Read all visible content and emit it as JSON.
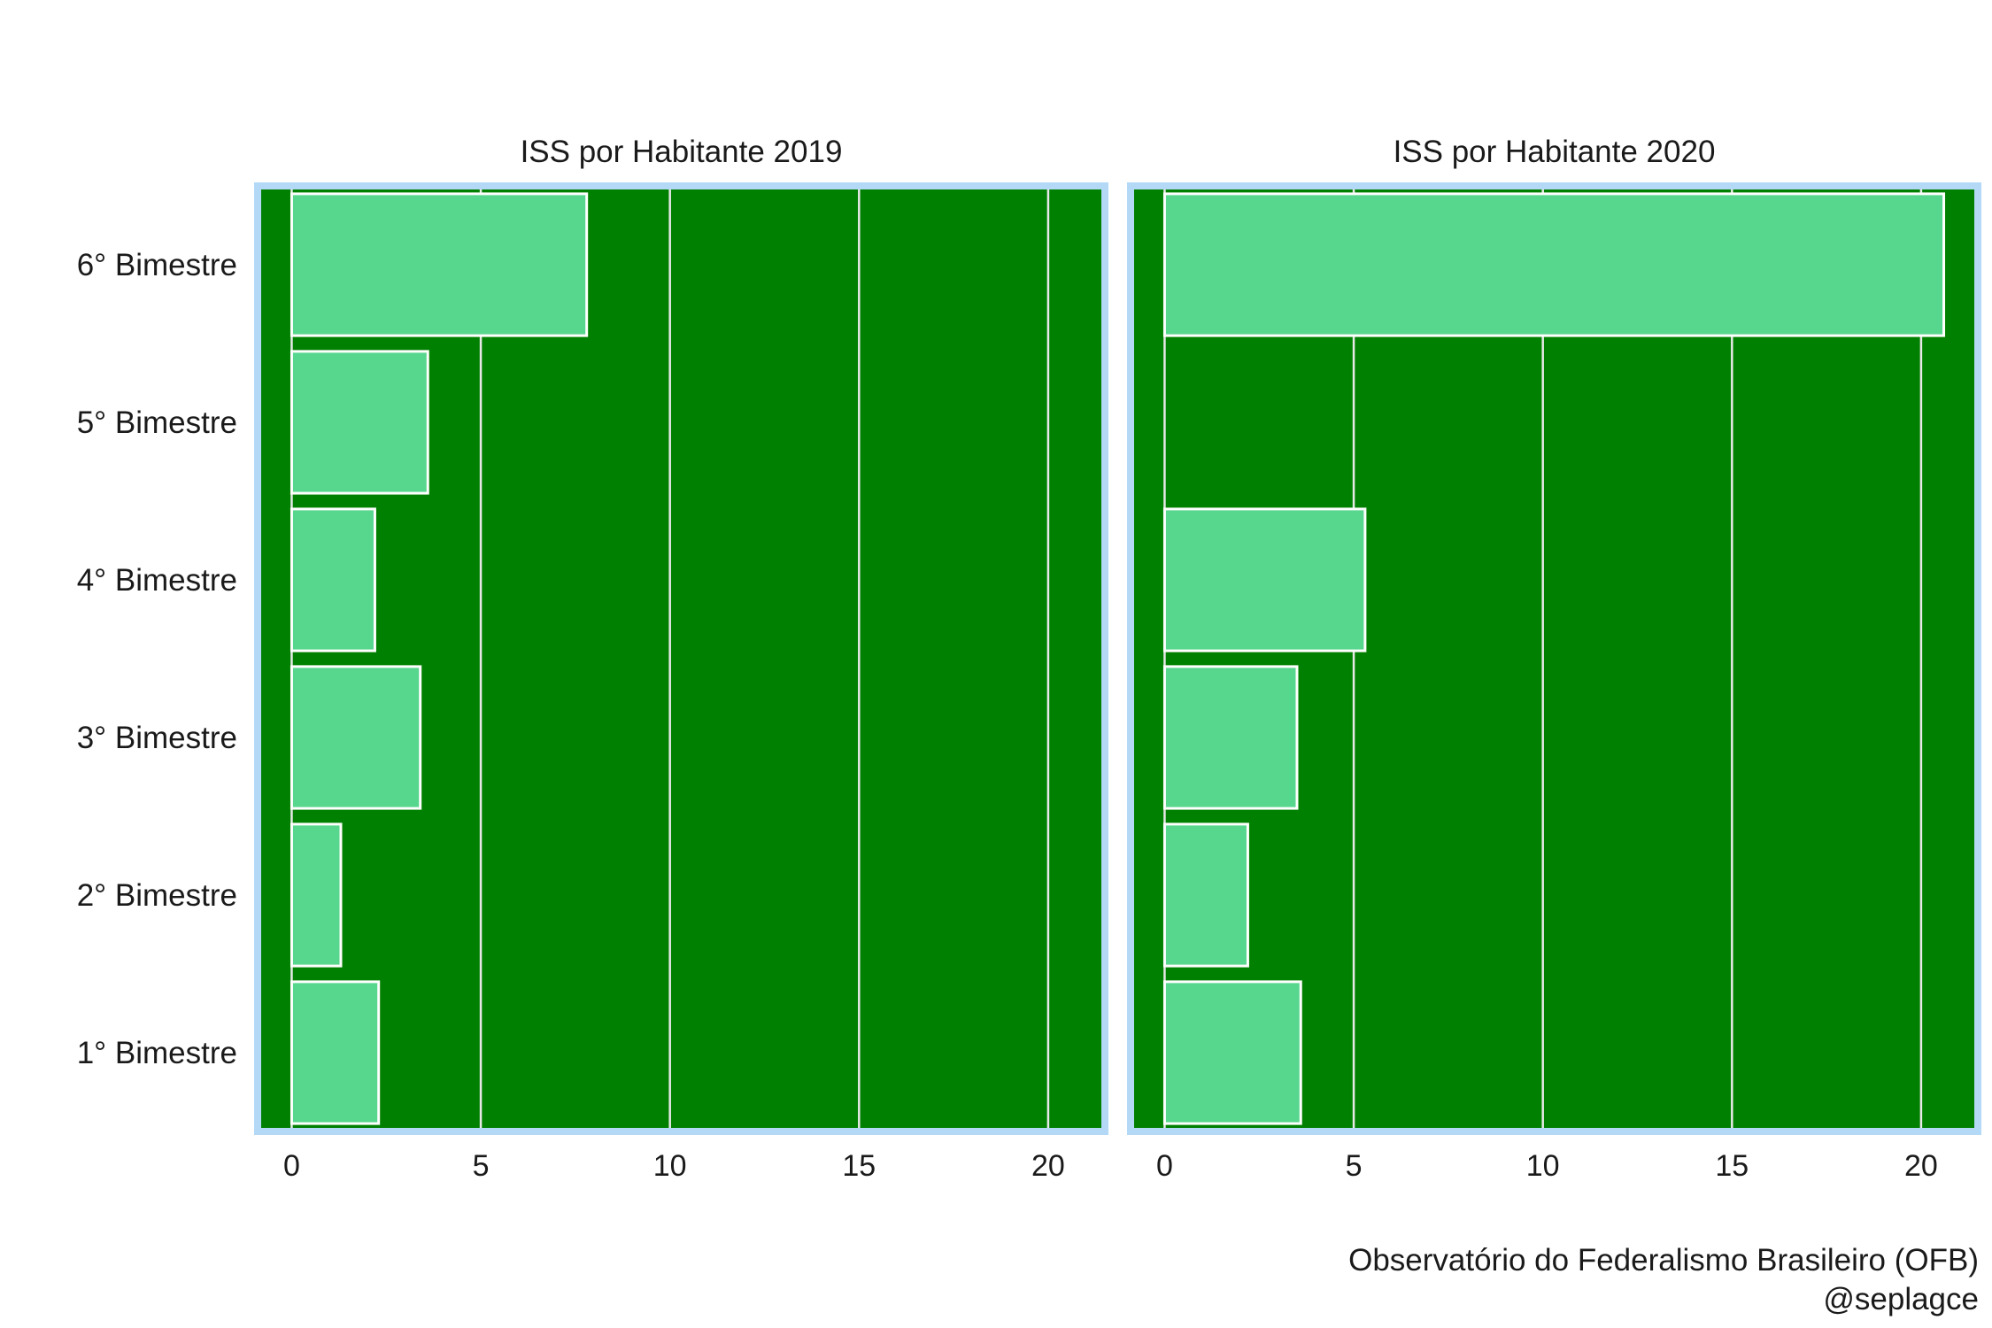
{
  "chart_data": {
    "type": "bar",
    "orientation": "horizontal",
    "categories": [
      "1° Bimestre",
      "2° Bimestre",
      "3° Bimestre",
      "4° Bimestre",
      "5° Bimestre",
      "6° Bimestre"
    ],
    "xlim": [
      -0.9,
      21.5
    ],
    "xticks": [
      "0",
      "5",
      "10",
      "15",
      "20"
    ],
    "grid": "vertical",
    "panels": [
      {
        "title": "ISS por Habitante 2019",
        "values": [
          2.3,
          1.3,
          3.4,
          2.2,
          3.6,
          7.8
        ]
      },
      {
        "title": "ISS por Habitante 2020",
        "values": [
          3.6,
          2.2,
          3.5,
          5.3,
          0.0,
          20.6
        ]
      }
    ]
  },
  "colors": {
    "panel_background": "#008000",
    "panel_border": "#b3d9f7",
    "bar_fill": "#57d68d",
    "bar_stroke": "#ffffff",
    "gridline": "#e8e8e8"
  },
  "caption": {
    "line1": "Observatório do Federalismo Brasileiro (OFB)",
    "line2": "@seplagce"
  }
}
